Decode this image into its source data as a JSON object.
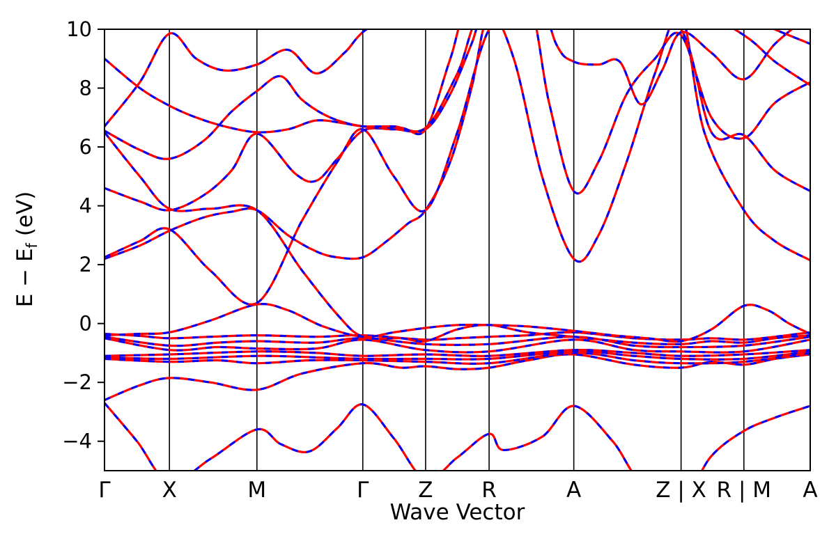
{
  "chart_data": {
    "type": "line",
    "title": "",
    "xlabel": "Wave Vector",
    "ylabel": "E − E_f (eV)",
    "ylabel_parts": {
      "pre": "E − E",
      "sub": "f",
      "post": " (eV)"
    },
    "ylim": [
      -5,
      10
    ],
    "grid": false,
    "legend_position": "none",
    "series_styles": [
      {
        "name": "bands-solid",
        "color": "#ff0000",
        "style": "solid",
        "width": 3.2
      },
      {
        "name": "bands-overlay",
        "color": "#0000ff",
        "style": "dashed",
        "width": 3.0,
        "dash": "9 12"
      }
    ],
    "frame_color": "#000000",
    "kline_color": "#000000",
    "y_ticks": [
      {
        "value": 10,
        "label": "10"
      },
      {
        "value": 8,
        "label": "8"
      },
      {
        "value": 6,
        "label": "6"
      },
      {
        "value": 4,
        "label": "4"
      },
      {
        "value": 2,
        "label": "2"
      },
      {
        "value": 0,
        "label": "0"
      },
      {
        "value": -2,
        "label": "−2"
      },
      {
        "value": -4,
        "label": "−4"
      }
    ],
    "k_labels": [
      {
        "label": "Γ",
        "x": 0.0
      },
      {
        "label": "X",
        "x": 0.092
      },
      {
        "label": "M",
        "x": 0.216
      },
      {
        "label": "Γ",
        "x": 0.366
      },
      {
        "label": "Z",
        "x": 0.455
      },
      {
        "label": "R",
        "x": 0.545
      },
      {
        "label": "A",
        "x": 0.665
      },
      {
        "label": "Z | X",
        "x": 0.817
      },
      {
        "label": "R | M",
        "x": 0.906
      },
      {
        "label": "A",
        "x": 1.0
      }
    ],
    "bands": [
      [
        [
          0,
          -2.7
        ],
        [
          0.046,
          -4.0
        ],
        [
          0.092,
          -5.4
        ],
        [
          0.15,
          -4.6
        ],
        [
          0.216,
          -3.6
        ],
        [
          0.25,
          -4.1
        ],
        [
          0.29,
          -4.35
        ],
        [
          0.33,
          -3.55
        ],
        [
          0.366,
          -2.75
        ],
        [
          0.41,
          -3.9
        ],
        [
          0.455,
          -5.3
        ],
        [
          0.5,
          -4.55
        ],
        [
          0.545,
          -3.75
        ],
        [
          0.565,
          -4.3
        ],
        [
          0.62,
          -3.85
        ],
        [
          0.665,
          -2.8
        ],
        [
          0.72,
          -4.0
        ],
        [
          0.76,
          -5.4
        ],
        [
          0.817,
          -6.0
        ],
        [
          0.86,
          -4.5
        ],
        [
          0.906,
          -3.65
        ],
        [
          0.95,
          -3.2
        ],
        [
          1.0,
          -2.8
        ]
      ],
      [
        [
          0,
          -2.6
        ],
        [
          0.05,
          -2.1
        ],
        [
          0.092,
          -1.85
        ],
        [
          0.15,
          -2.0
        ],
        [
          0.216,
          -2.25
        ],
        [
          0.28,
          -1.7
        ],
        [
          0.366,
          -1.35
        ],
        [
          0.42,
          -1.5
        ],
        [
          0.455,
          -1.45
        ],
        [
          0.5,
          -1.55
        ],
        [
          0.545,
          -1.5
        ],
        [
          0.6,
          -1.25
        ],
        [
          0.665,
          -1.05
        ],
        [
          0.75,
          -1.4
        ],
        [
          0.817,
          -1.5
        ],
        [
          0.86,
          -1.3
        ],
        [
          0.906,
          -1.4
        ],
        [
          0.95,
          -1.2
        ],
        [
          1.0,
          -1.05
        ]
      ],
      [
        [
          0,
          -1.2
        ],
        [
          0.092,
          -1.3
        ],
        [
          0.16,
          -1.25
        ],
        [
          0.216,
          -1.35
        ],
        [
          0.29,
          -1.25
        ],
        [
          0.366,
          -1.25
        ],
        [
          0.455,
          -1.3
        ],
        [
          0.545,
          -1.35
        ],
        [
          0.665,
          -1.0
        ],
        [
          0.75,
          -1.25
        ],
        [
          0.817,
          -1.35
        ],
        [
          0.906,
          -1.3
        ],
        [
          1.0,
          -1.0
        ]
      ],
      [
        [
          0,
          -1.15
        ],
        [
          0.092,
          -1.2
        ],
        [
          0.216,
          -1.1
        ],
        [
          0.3,
          -1.15
        ],
        [
          0.366,
          -1.2
        ],
        [
          0.455,
          -1.2
        ],
        [
          0.545,
          -1.2
        ],
        [
          0.665,
          -0.95
        ],
        [
          0.75,
          -1.1
        ],
        [
          0.817,
          -1.2
        ],
        [
          0.906,
          -1.2
        ],
        [
          1.0,
          -0.95
        ]
      ],
      [
        [
          0,
          -1.1
        ],
        [
          0.092,
          -1.05
        ],
        [
          0.216,
          -0.95
        ],
        [
          0.3,
          -1.0
        ],
        [
          0.366,
          -1.1
        ],
        [
          0.455,
          -1.05
        ],
        [
          0.545,
          -1.1
        ],
        [
          0.665,
          -0.9
        ],
        [
          0.75,
          -1.0
        ],
        [
          0.817,
          -1.1
        ],
        [
          0.906,
          -1.05
        ],
        [
          1.0,
          -0.9
        ]
      ],
      [
        [
          0,
          -0.5
        ],
        [
          0.092,
          -0.9
        ],
        [
          0.16,
          -0.8
        ],
        [
          0.216,
          -0.85
        ],
        [
          0.3,
          -0.85
        ],
        [
          0.366,
          -0.55
        ],
        [
          0.455,
          -0.9
        ],
        [
          0.545,
          -0.95
        ],
        [
          0.665,
          -0.55
        ],
        [
          0.75,
          -0.9
        ],
        [
          0.817,
          -0.95
        ],
        [
          0.906,
          -0.95
        ],
        [
          1.0,
          -0.55
        ]
      ],
      [
        [
          0,
          -0.45
        ],
        [
          0.092,
          -0.75
        ],
        [
          0.16,
          -0.65
        ],
        [
          0.216,
          -0.6
        ],
        [
          0.3,
          -0.65
        ],
        [
          0.366,
          -0.5
        ],
        [
          0.455,
          -0.7
        ],
        [
          0.545,
          -0.7
        ],
        [
          0.665,
          -0.45
        ],
        [
          0.75,
          -0.75
        ],
        [
          0.817,
          -0.8
        ],
        [
          0.906,
          -0.75
        ],
        [
          1.0,
          -0.45
        ]
      ],
      [
        [
          0,
          -0.35
        ],
        [
          0.05,
          -0.42
        ],
        [
          0.092,
          -0.5
        ],
        [
          0.15,
          -0.45
        ],
        [
          0.216,
          -0.4
        ],
        [
          0.3,
          -0.45
        ],
        [
          0.366,
          -0.4
        ],
        [
          0.455,
          -0.55
        ],
        [
          0.5,
          -0.5
        ],
        [
          0.545,
          -0.45
        ],
        [
          0.6,
          -0.4
        ],
        [
          0.665,
          -0.3
        ],
        [
          0.75,
          -0.5
        ],
        [
          0.817,
          -0.55
        ],
        [
          0.86,
          -0.5
        ],
        [
          0.906,
          -0.55
        ],
        [
          0.95,
          -0.45
        ],
        [
          1.0,
          -0.3
        ]
      ],
      [
        [
          0,
          -0.4
        ],
        [
          0.05,
          -0.35
        ],
        [
          0.092,
          -0.3
        ],
        [
          0.15,
          0.1
        ],
        [
          0.216,
          0.65
        ],
        [
          0.26,
          0.45
        ],
        [
          0.31,
          -0.1
        ],
        [
          0.366,
          -0.45
        ],
        [
          0.41,
          -0.3
        ],
        [
          0.455,
          -0.15
        ],
        [
          0.5,
          -0.05
        ],
        [
          0.545,
          -0.05
        ],
        [
          0.6,
          -0.1
        ],
        [
          0.665,
          -0.25
        ],
        [
          0.72,
          -0.4
        ],
        [
          0.77,
          -0.5
        ],
        [
          0.817,
          -0.6
        ],
        [
          0.86,
          -0.2
        ],
        [
          0.906,
          0.6
        ],
        [
          0.94,
          0.45
        ],
        [
          0.97,
          0.0
        ],
        [
          1.0,
          -0.35
        ]
      ],
      [
        [
          0,
          6.5
        ],
        [
          0.05,
          5.0
        ],
        [
          0.092,
          3.9
        ],
        [
          0.15,
          3.9
        ],
        [
          0.216,
          3.85
        ],
        [
          0.28,
          1.8
        ],
        [
          0.33,
          0.3
        ],
        [
          0.366,
          -0.45
        ],
        [
          0.42,
          -0.5
        ],
        [
          0.455,
          -0.6
        ],
        [
          0.5,
          -0.2
        ],
        [
          0.545,
          -0.05
        ],
        [
          0.6,
          -0.3
        ],
        [
          0.665,
          -0.45
        ],
        [
          0.75,
          -0.65
        ],
        [
          0.817,
          -0.7
        ],
        [
          0.86,
          -0.6
        ],
        [
          0.906,
          -0.65
        ],
        [
          0.95,
          -0.5
        ],
        [
          1.0,
          -0.4
        ]
      ],
      [
        [
          0,
          2.2
        ],
        [
          0.05,
          2.65
        ],
        [
          0.092,
          3.15
        ],
        [
          0.14,
          3.6
        ],
        [
          0.18,
          3.8
        ],
        [
          0.216,
          3.85
        ],
        [
          0.26,
          3.0
        ],
        [
          0.3,
          2.45
        ],
        [
          0.33,
          2.25
        ],
        [
          0.366,
          2.25
        ],
        [
          0.4,
          2.8
        ],
        [
          0.43,
          3.4
        ],
        [
          0.455,
          3.85
        ],
        [
          0.49,
          5.5
        ],
        [
          0.52,
          8.0
        ],
        [
          0.545,
          10.5
        ],
        [
          0.58,
          9.0
        ],
        [
          0.62,
          5.0
        ],
        [
          0.665,
          2.2
        ],
        [
          0.7,
          3.0
        ],
        [
          0.74,
          5.5
        ],
        [
          0.78,
          8.5
        ],
        [
          0.817,
          10.5
        ],
        [
          0.85,
          6.5
        ],
        [
          0.906,
          3.85
        ],
        [
          0.95,
          2.8
        ],
        [
          1.0,
          2.15
        ]
      ],
      [
        [
          0,
          4.6
        ],
        [
          0.05,
          4.15
        ],
        [
          0.092,
          3.85
        ],
        [
          0.14,
          4.35
        ],
        [
          0.18,
          5.2
        ],
        [
          0.216,
          6.45
        ],
        [
          0.27,
          5.1
        ],
        [
          0.3,
          4.85
        ],
        [
          0.33,
          5.6
        ],
        [
          0.366,
          6.55
        ],
        [
          0.41,
          6.6
        ],
        [
          0.455,
          6.6
        ],
        [
          0.49,
          7.8
        ],
        [
          0.52,
          9.5
        ],
        [
          0.545,
          11.0
        ],
        [
          0.6,
          11.0
        ],
        [
          0.63,
          7.5
        ],
        [
          0.665,
          4.5
        ],
        [
          0.7,
          5.5
        ],
        [
          0.74,
          7.8
        ],
        [
          0.78,
          9.0
        ],
        [
          0.817,
          9.8
        ],
        [
          0.86,
          7.0
        ],
        [
          0.906,
          6.3
        ],
        [
          0.95,
          7.5
        ],
        [
          1.0,
          8.2
        ]
      ],
      [
        [
          0,
          6.55
        ],
        [
          0.05,
          5.9
        ],
        [
          0.092,
          5.6
        ],
        [
          0.14,
          6.2
        ],
        [
          0.18,
          7.2
        ],
        [
          0.216,
          7.9
        ],
        [
          0.25,
          8.4
        ],
        [
          0.28,
          7.6
        ],
        [
          0.32,
          7.0
        ],
        [
          0.366,
          6.7
        ],
        [
          0.42,
          6.65
        ],
        [
          0.455,
          6.6
        ],
        [
          0.49,
          9.0
        ],
        [
          0.52,
          11.0
        ],
        [
          0.6,
          12.0
        ],
        [
          0.64,
          9.5
        ],
        [
          0.665,
          8.9
        ],
        [
          0.7,
          8.8
        ],
        [
          0.73,
          8.9
        ],
        [
          0.76,
          7.45
        ],
        [
          0.79,
          8.6
        ],
        [
          0.817,
          9.9
        ],
        [
          0.86,
          9.2
        ],
        [
          0.906,
          8.3
        ],
        [
          0.95,
          9.5
        ],
        [
          1.0,
          10.5
        ]
      ],
      [
        [
          0,
          6.7
        ],
        [
          0.05,
          8.2
        ],
        [
          0.092,
          9.85
        ],
        [
          0.13,
          9.0
        ],
        [
          0.17,
          8.6
        ],
        [
          0.216,
          8.8
        ],
        [
          0.26,
          9.3
        ],
        [
          0.3,
          8.5
        ],
        [
          0.34,
          9.2
        ],
        [
          0.366,
          9.9
        ],
        [
          0.42,
          10.8
        ],
        [
          0.455,
          11.5
        ],
        [
          0.545,
          11.5
        ],
        [
          0.665,
          11.0
        ],
        [
          0.76,
          11.5
        ],
        [
          0.817,
          11.0
        ],
        [
          0.906,
          9.8
        ],
        [
          0.95,
          8.9
        ],
        [
          1.0,
          8.1
        ]
      ],
      [
        [
          0,
          9.0
        ],
        [
          0.05,
          8.0
        ],
        [
          0.092,
          7.4
        ],
        [
          0.13,
          7.0
        ],
        [
          0.17,
          6.7
        ],
        [
          0.216,
          6.5
        ],
        [
          0.26,
          6.6
        ],
        [
          0.3,
          6.9
        ],
        [
          0.34,
          6.8
        ],
        [
          0.366,
          6.7
        ],
        [
          0.41,
          6.7
        ],
        [
          0.455,
          6.65
        ],
        [
          0.5,
          8.5
        ],
        [
          0.545,
          11.0
        ],
        [
          0.665,
          12.0
        ],
        [
          0.817,
          12.0
        ],
        [
          0.906,
          10.5
        ],
        [
          1.0,
          9.5
        ]
      ],
      [
        [
          0,
          2.25
        ],
        [
          0.05,
          2.8
        ],
        [
          0.092,
          3.2
        ],
        [
          0.15,
          1.8
        ],
        [
          0.216,
          0.7
        ],
        [
          0.28,
          3.5
        ],
        [
          0.33,
          5.5
        ],
        [
          0.366,
          6.6
        ],
        [
          0.41,
          5.0
        ],
        [
          0.455,
          3.85
        ],
        [
          0.5,
          6.5
        ],
        [
          0.545,
          10.0
        ],
        [
          0.6,
          11.0
        ],
        [
          0.665,
          10.5
        ],
        [
          0.74,
          11.0
        ],
        [
          0.817,
          10.0
        ],
        [
          0.86,
          6.5
        ],
        [
          0.906,
          6.4
        ],
        [
          0.95,
          5.2
        ],
        [
          1.0,
          4.5
        ]
      ]
    ]
  }
}
